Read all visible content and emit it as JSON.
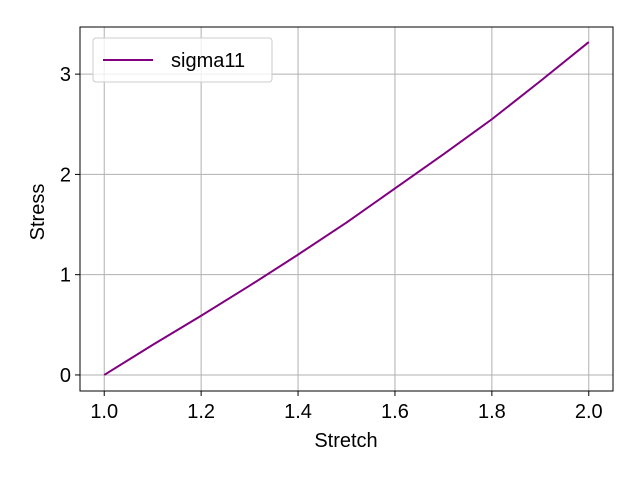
{
  "chart_data": {
    "type": "line",
    "title": "",
    "xlabel": "Stretch",
    "ylabel": "Stress",
    "xlim": [
      0.95,
      2.05
    ],
    "ylim": [
      -0.16,
      3.47
    ],
    "xticks": [
      1.0,
      1.2,
      1.4,
      1.6,
      1.8,
      2.0
    ],
    "xtick_labels": [
      "1.0",
      "1.2",
      "1.4",
      "1.6",
      "1.8",
      "2.0"
    ],
    "yticks": [
      0,
      1,
      2,
      3
    ],
    "ytick_labels": [
      "0",
      "1",
      "2",
      "3"
    ],
    "grid": true,
    "legend_position": "top-left",
    "series": [
      {
        "name": "sigma11",
        "color": "#800080",
        "x": [
          1.0,
          1.1,
          1.2,
          1.3,
          1.4,
          1.5,
          1.6,
          1.7,
          1.8,
          1.9,
          2.0
        ],
        "y": [
          0.0,
          0.3,
          0.59,
          0.89,
          1.2,
          1.52,
          1.86,
          2.2,
          2.55,
          2.93,
          3.32
        ]
      }
    ]
  }
}
